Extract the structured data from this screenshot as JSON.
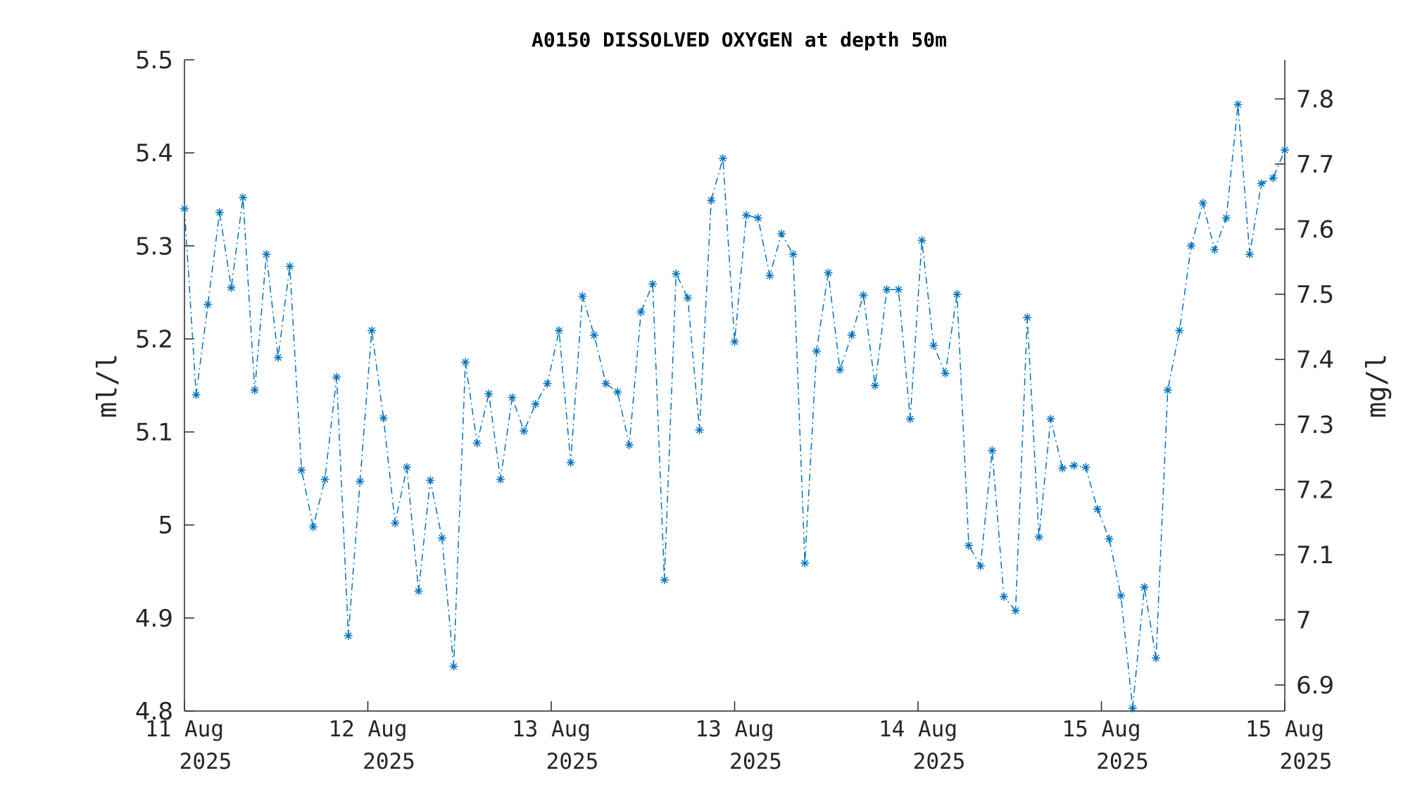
{
  "chart_data": {
    "type": "line",
    "title": "A0150 DISSOLVED OXYGEN at depth 50m",
    "ylabel": "ml/l",
    "ylabel_right": "mg/l",
    "ylim": [
      4.8,
      5.5
    ],
    "ylim_right": [
      6.86,
      7.86
    ],
    "yticks": [
      "4.8",
      "4.9",
      "5",
      "5.1",
      "5.2",
      "5.3",
      "5.4",
      "5.5"
    ],
    "yticks_right": [
      "6.9",
      "7",
      "7.1",
      "7.2",
      "7.3",
      "7.4",
      "7.5",
      "7.6",
      "7.7",
      "7.8"
    ],
    "xticks": [
      {
        "line1": "11 Aug",
        "line2": "2025"
      },
      {
        "line1": "12 Aug",
        "line2": "2025"
      },
      {
        "line1": "13 Aug",
        "line2": "2025"
      },
      {
        "line1": "13 Aug",
        "line2": "2025"
      },
      {
        "line1": "14 Aug",
        "line2": "2025"
      },
      {
        "line1": "15 Aug",
        "line2": "2025"
      },
      {
        "line1": "15 Aug",
        "line2": "2025"
      }
    ],
    "grid": false,
    "series": [
      {
        "color": "#0072BD",
        "line_style": "dash-dot",
        "marker": "asterisk",
        "values": [
          5.34,
          5.14,
          5.237,
          5.336,
          5.255,
          5.352,
          5.145,
          5.291,
          5.18,
          5.278,
          5.059,
          4.998,
          5.049,
          5.159,
          4.881,
          5.047,
          5.209,
          5.115,
          5.002,
          5.062,
          4.929,
          5.048,
          4.986,
          4.848,
          5.175,
          5.088,
          5.141,
          5.049,
          5.137,
          5.101,
          5.13,
          5.152,
          5.209,
          5.067,
          5.246,
          5.204,
          5.152,
          5.143,
          5.086,
          5.229,
          5.259,
          4.941,
          5.27,
          5.244,
          5.102,
          5.349,
          5.394,
          5.197,
          5.333,
          5.33,
          5.268,
          5.313,
          5.291,
          4.959,
          5.187,
          5.271,
          5.167,
          5.204,
          5.247,
          5.15,
          5.253,
          5.253,
          5.114,
          5.306,
          5.193,
          5.163,
          5.248,
          4.978,
          4.956,
          5.08,
          4.923,
          4.908,
          5.223,
          4.987,
          5.114,
          5.061,
          5.064,
          5.062,
          5.017,
          4.985,
          4.924,
          4.803,
          4.933,
          4.857,
          5.145,
          5.209,
          5.3,
          5.346,
          5.296,
          5.33,
          5.452,
          5.291,
          5.367,
          5.373,
          5.403
        ]
      }
    ]
  }
}
